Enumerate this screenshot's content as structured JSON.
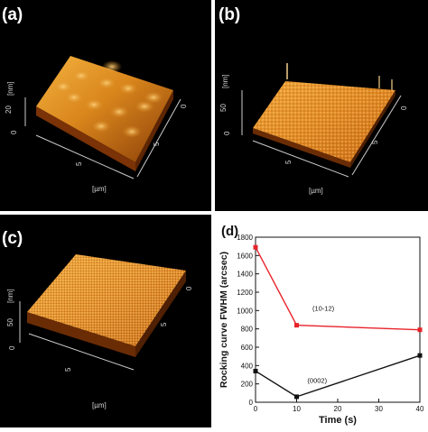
{
  "panels": [
    {
      "label": "(a)",
      "unit_z": "[nm]",
      "unit_xy": "[µm]",
      "z_ticks": [
        "20",
        "0"
      ],
      "xy_ticks": [
        "0",
        "5",
        "5"
      ]
    },
    {
      "label": "(b)",
      "unit_z": "[nm]",
      "unit_xy": "[µm]",
      "z_ticks": [
        "50",
        "0"
      ],
      "xy_ticks": [
        "0",
        "5",
        "5"
      ]
    },
    {
      "label": "(c)",
      "unit_z": "[nm]",
      "unit_xy": "[µm]",
      "z_ticks": [
        "50",
        "0"
      ],
      "xy_ticks": [
        "0",
        "5",
        "5"
      ]
    }
  ],
  "chart_data": {
    "type": "line",
    "panel_label": "(d)",
    "xlabel": "Time (s)",
    "ylabel": "Rocking curve FWHM (arcsec)",
    "xlim": [
      0,
      40
    ],
    "ylim": [
      0,
      1800
    ],
    "x_ticks": [
      0,
      10,
      20,
      30,
      40
    ],
    "y_ticks": [
      0,
      200,
      400,
      600,
      800,
      1000,
      1200,
      1400,
      1600,
      1800
    ],
    "grid": false,
    "series": [
      {
        "name": "(10-12)",
        "color": "#e8232a",
        "x": [
          0,
          10,
          40
        ],
        "values": [
          1690,
          840,
          790
        ]
      },
      {
        "name": "(0002)",
        "color": "#111111",
        "x": [
          0,
          10,
          40
        ],
        "values": [
          340,
          60,
          510
        ]
      }
    ]
  }
}
